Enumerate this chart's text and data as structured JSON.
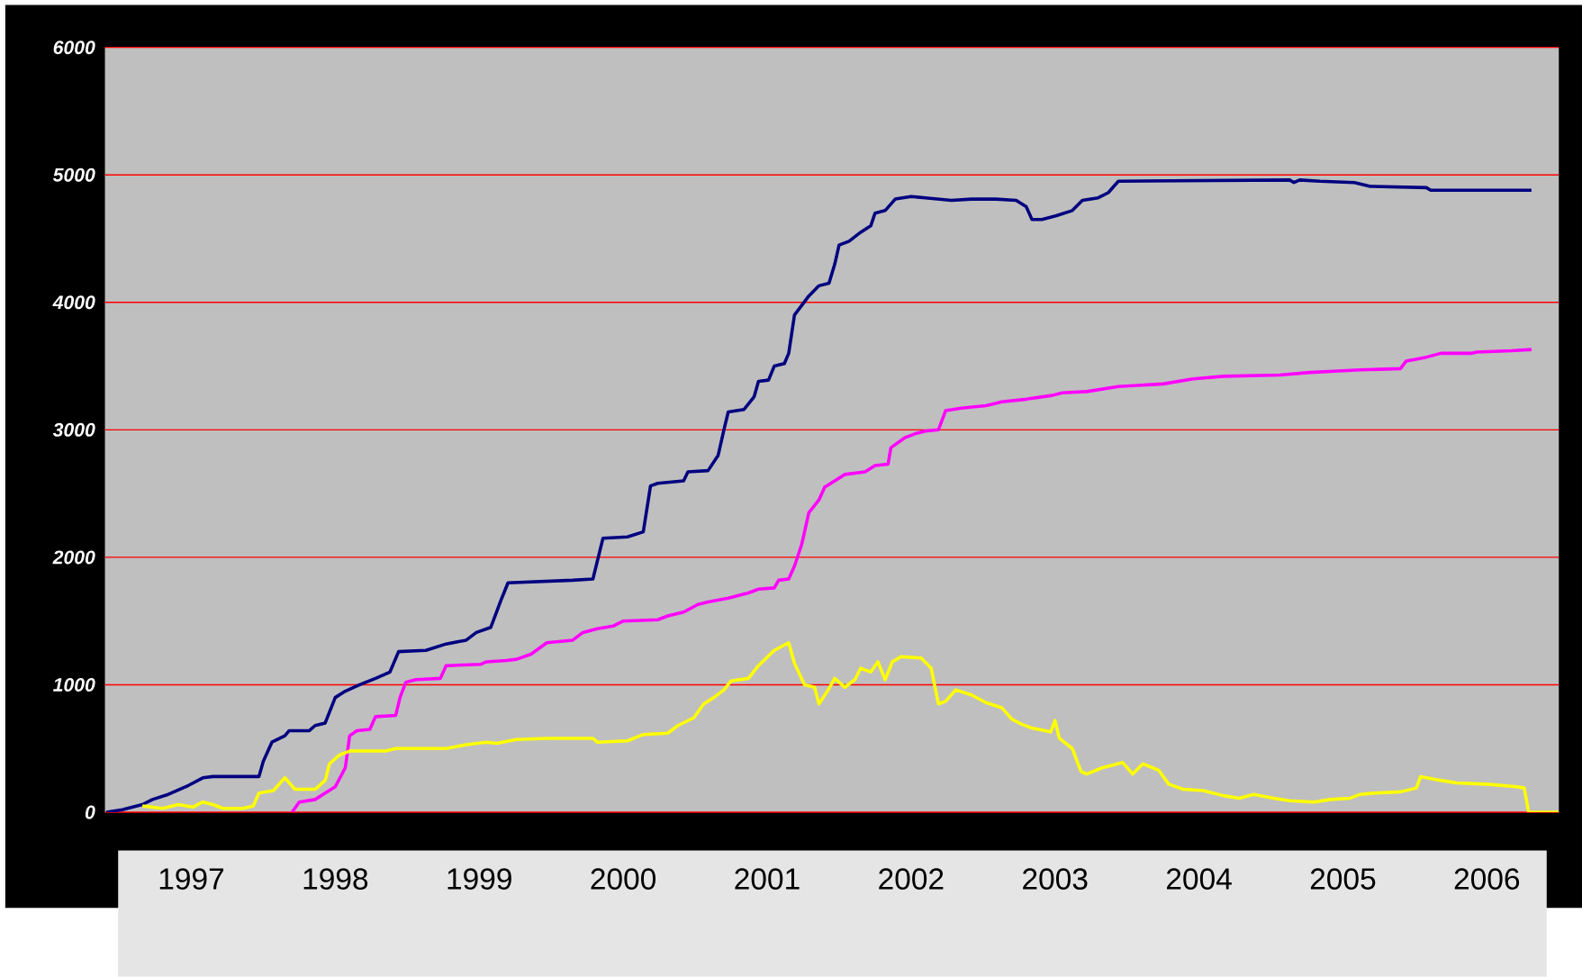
{
  "chart_data": {
    "type": "line",
    "grid": "y",
    "xlim": [
      1996.9,
      2007.0
    ],
    "ylim": [
      0,
      6000
    ],
    "xticks": [
      {
        "value": 1997.5,
        "label": "1997"
      },
      {
        "value": 1998.5,
        "label": "1998"
      },
      {
        "value": 1999.5,
        "label": "1999"
      },
      {
        "value": 2000.5,
        "label": "2000"
      },
      {
        "value": 2001.5,
        "label": "2001"
      },
      {
        "value": 2002.5,
        "label": "2002"
      },
      {
        "value": 2003.5,
        "label": "2003"
      },
      {
        "value": 2004.5,
        "label": "2004"
      },
      {
        "value": 2005.5,
        "label": "2005"
      },
      {
        "value": 2006.5,
        "label": "2006"
      }
    ],
    "yticks": [
      0,
      1000,
      2000,
      3000,
      4000,
      5000,
      6000
    ],
    "series": [
      {
        "color": "#000080",
        "x": [
          1996.91,
          1997.02,
          1997.16,
          1997.23,
          1997.34,
          1997.48,
          1997.58,
          1997.65,
          1997.97,
          1998.0,
          1998.06,
          1998.15,
          1998.18,
          1998.32,
          1998.36,
          1998.43,
          1998.5,
          1998.57,
          1998.67,
          1998.78,
          1998.88,
          1998.94,
          1999.13,
          1999.27,
          1999.41,
          1999.48,
          1999.58,
          1999.65,
          1999.7,
          2000.15,
          2000.29,
          2000.36,
          2000.53,
          2000.64,
          2000.69,
          2000.74,
          2000.92,
          2000.95,
          2001.09,
          2001.16,
          2001.2,
          2001.23,
          2001.34,
          2001.41,
          2001.44,
          2001.51,
          2001.55,
          2001.62,
          2001.65,
          2001.69,
          2001.79,
          2001.86,
          2001.93,
          2001.97,
          2002.0,
          2002.07,
          2002.15,
          2002.22,
          2002.25,
          2002.32,
          2002.39,
          2002.5,
          2002.6,
          2002.78,
          2002.92,
          2003.09,
          2003.23,
          2003.3,
          2003.34,
          2003.41,
          2003.51,
          2003.62,
          2003.69,
          2003.8,
          2003.87,
          2003.94,
          2005.13,
          2005.16,
          2005.2,
          2005.34,
          2005.58,
          2005.69,
          2006.08,
          2006.11,
          2006.81
        ],
        "values": [
          0,
          20,
          60,
          100,
          140,
          210,
          270,
          280,
          280,
          400,
          550,
          600,
          640,
          640,
          680,
          700,
          900,
          950,
          1000,
          1050,
          1100,
          1260,
          1270,
          1320,
          1350,
          1410,
          1450,
          1660,
          1800,
          1820,
          1830,
          2150,
          2160,
          2200,
          2560,
          2580,
          2600,
          2670,
          2680,
          2800,
          3000,
          3140,
          3160,
          3260,
          3380,
          3390,
          3500,
          3520,
          3600,
          3900,
          4050,
          4130,
          4150,
          4300,
          4450,
          4480,
          4550,
          4600,
          4700,
          4720,
          4810,
          4830,
          4820,
          4800,
          4810,
          4810,
          4800,
          4750,
          4650,
          4650,
          4680,
          4720,
          4800,
          4820,
          4860,
          4950,
          4960,
          4940,
          4960,
          4950,
          4940,
          4910,
          4900,
          4880,
          4880
        ]
      },
      {
        "color": "#ff00ff",
        "x": [
          1998.2,
          1998.25,
          1998.36,
          1998.43,
          1998.5,
          1998.57,
          1998.6,
          1998.65,
          1998.74,
          1998.78,
          1998.92,
          1998.95,
          1998.99,
          1999.06,
          1999.23,
          1999.27,
          1999.51,
          1999.55,
          1999.69,
          1999.76,
          1999.86,
          1999.97,
          2000.15,
          2000.22,
          2000.32,
          2000.43,
          2000.5,
          2000.74,
          2000.81,
          2000.92,
          2001.02,
          2001.09,
          2001.23,
          2001.37,
          2001.44,
          2001.55,
          2001.58,
          2001.65,
          2001.69,
          2001.74,
          2001.79,
          2001.86,
          2001.9,
          2001.97,
          2002.04,
          2002.18,
          2002.25,
          2002.34,
          2002.36,
          2002.46,
          2002.53,
          2002.6,
          2002.69,
          2002.74,
          2002.85,
          2003.02,
          2003.06,
          2003.13,
          2003.3,
          2003.48,
          2003.55,
          2003.72,
          2003.94,
          2004.25,
          2004.46,
          2004.67,
          2005.06,
          2005.27,
          2005.44,
          2005.62,
          2005.9,
          2005.94,
          2006.08,
          2006.18,
          2006.39,
          2006.43,
          2006.67,
          2006.81
        ],
        "values": [
          0,
          80,
          100,
          150,
          200,
          350,
          600,
          640,
          650,
          750,
          760,
          900,
          1020,
          1040,
          1050,
          1150,
          1160,
          1180,
          1190,
          1200,
          1240,
          1330,
          1350,
          1410,
          1440,
          1460,
          1500,
          1510,
          1540,
          1570,
          1630,
          1650,
          1680,
          1720,
          1750,
          1760,
          1820,
          1830,
          1930,
          2100,
          2350,
          2450,
          2550,
          2600,
          2650,
          2670,
          2720,
          2730,
          2860,
          2940,
          2970,
          2990,
          3000,
          3150,
          3170,
          3190,
          3200,
          3220,
          3240,
          3270,
          3290,
          3300,
          3340,
          3360,
          3400,
          3420,
          3430,
          3450,
          3460,
          3470,
          3480,
          3540,
          3570,
          3600,
          3600,
          3610,
          3620,
          3630
        ]
      },
      {
        "color": "#ffff00",
        "x": [
          1997.16,
          1997.3,
          1997.41,
          1997.51,
          1997.58,
          1997.65,
          1997.72,
          1997.86,
          1997.93,
          1997.97,
          1998.07,
          1998.15,
          1998.22,
          1998.36,
          1998.43,
          1998.46,
          1998.53,
          1998.6,
          1998.85,
          1998.92,
          1999.27,
          1999.41,
          1999.55,
          1999.62,
          1999.76,
          1999.97,
          2000.29,
          2000.32,
          2000.53,
          2000.64,
          2000.81,
          2000.88,
          2000.99,
          2001.06,
          2001.13,
          2001.2,
          2001.25,
          2001.37,
          2001.44,
          2001.55,
          2001.65,
          2001.69,
          2001.76,
          2001.83,
          2001.86,
          2001.93,
          2001.97,
          2002.04,
          2002.11,
          2002.15,
          2002.22,
          2002.27,
          2002.32,
          2002.37,
          2002.43,
          2002.57,
          2002.64,
          2002.69,
          2002.74,
          2002.81,
          2002.92,
          2003.02,
          2003.13,
          2003.2,
          2003.27,
          2003.34,
          2003.47,
          2003.5,
          2003.53,
          2003.62,
          2003.68,
          2003.72,
          2003.83,
          2003.9,
          2003.97,
          2004.04,
          2004.11,
          2004.22,
          2004.29,
          2004.39,
          2004.53,
          2004.67,
          2004.78,
          2004.88,
          2005.02,
          2005.13,
          2005.3,
          2005.41,
          2005.55,
          2005.62,
          2005.72,
          2005.9,
          2006.01,
          2006.04,
          2006.18,
          2006.29,
          2006.5,
          2006.71,
          2006.76,
          2006.79,
          2007.0
        ],
        "values": [
          50,
          30,
          60,
          40,
          80,
          60,
          30,
          30,
          50,
          150,
          170,
          270,
          180,
          180,
          250,
          380,
          450,
          480,
          480,
          500,
          500,
          530,
          550,
          540,
          570,
          580,
          580,
          550,
          560,
          610,
          620,
          680,
          740,
          850,
          900,
          960,
          1030,
          1050,
          1150,
          1270,
          1330,
          1170,
          1000,
          980,
          850,
          970,
          1050,
          980,
          1040,
          1130,
          1100,
          1180,
          1040,
          1180,
          1220,
          1210,
          1130,
          850,
          870,
          960,
          920,
          860,
          820,
          730,
          690,
          660,
          630,
          720,
          580,
          500,
          320,
          300,
          350,
          370,
          390,
          300,
          380,
          330,
          220,
          180,
          170,
          130,
          110,
          140,
          110,
          90,
          80,
          100,
          110,
          140,
          150,
          160,
          190,
          280,
          250,
          230,
          220,
          200,
          190,
          0,
          0
        ]
      }
    ]
  }
}
